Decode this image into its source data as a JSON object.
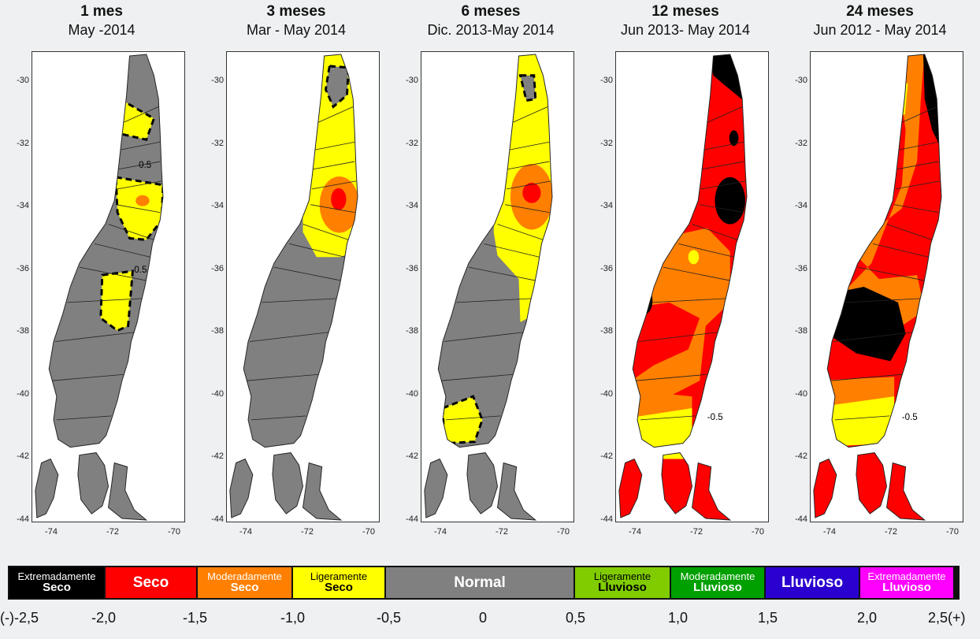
{
  "panels": [
    {
      "title": "1 mes",
      "subtitle": "May -2014",
      "y_ticks": [
        "-30",
        "-32",
        "-34",
        "-36",
        "-38",
        "-40",
        "-42",
        "-44"
      ],
      "x_ticks": [
        "-74",
        "-72",
        "-70"
      ],
      "contour_labels": [
        "0.5",
        "-0.5"
      ]
    },
    {
      "title": "3 meses",
      "subtitle": "Mar - May 2014",
      "y_ticks": [
        "-30",
        "-32",
        "-34",
        "-36",
        "-38",
        "-40",
        "-42",
        "-44"
      ],
      "x_ticks": [
        "-74",
        "-72",
        "-70"
      ],
      "contour_labels": []
    },
    {
      "title": "6 meses",
      "subtitle": "Dic. 2013-May 2014",
      "y_ticks": [
        "-30",
        "-32",
        "-34",
        "-36",
        "-38",
        "-40",
        "-42",
        "-44"
      ],
      "x_ticks": [
        "-74",
        "-72",
        "-70"
      ],
      "contour_labels": []
    },
    {
      "title": "12 meses",
      "subtitle": "Jun 2013- May 2014",
      "y_ticks": [
        "-30",
        "-32",
        "-34",
        "-36",
        "-38",
        "-40",
        "-42",
        "-44"
      ],
      "x_ticks": [
        "-74",
        "-72",
        "-70"
      ],
      "contour_labels": [
        "-0.5"
      ]
    },
    {
      "title": "24 meses",
      "subtitle": "Jun 2012 - May 2014",
      "y_ticks": [
        "-30",
        "-32",
        "-34",
        "-36",
        "-38",
        "-40",
        "-42",
        "-44"
      ],
      "x_ticks": [
        "-74",
        "-72",
        "-70"
      ],
      "contour_labels": [
        "-0.5"
      ]
    }
  ],
  "legend": [
    {
      "line1": "Extremadamente",
      "line2": "Seco",
      "color": "#000000",
      "text_color": "#ffffff"
    },
    {
      "line1": "",
      "line2": "Seco",
      "color": "#ff0000",
      "text_color": "#ffffff"
    },
    {
      "line1": "Moderadamente",
      "line2": "Seco",
      "color": "#ff7f00",
      "text_color": "#ffffff"
    },
    {
      "line1": "Ligeramente",
      "line2": "Seco",
      "color": "#ffff00",
      "text_color": "#000000"
    },
    {
      "line1": "",
      "line2": "Normal",
      "color": "#808080",
      "text_color": "#ffffff"
    },
    {
      "line1": "Ligeramente",
      "line2": "Lluvioso",
      "color": "#80cc00",
      "text_color": "#000000"
    },
    {
      "line1": "Moderadamente",
      "line2": "Lluvioso",
      "color": "#00a000",
      "text_color": "#ffffff"
    },
    {
      "line1": "",
      "line2": "Lluvioso",
      "color": "#2a00d0",
      "text_color": "#ffffff"
    },
    {
      "line1": "Extremadamente",
      "line2": "Lluvioso",
      "color": "#ff00ff",
      "text_color": "#ffffff"
    }
  ],
  "scale_labels": [
    "(-)-2,5",
    "-2,0",
    "-1,5",
    "-1,0",
    "-0,5",
    "0",
    "0,5",
    "1,0",
    "1,5",
    "2,0",
    "2,5(+)"
  ],
  "colors": {
    "extremely_dry": "#000000",
    "dry": "#ff0000",
    "moderately_dry": "#ff7f00",
    "slightly_dry": "#ffff00",
    "normal": "#808080"
  }
}
